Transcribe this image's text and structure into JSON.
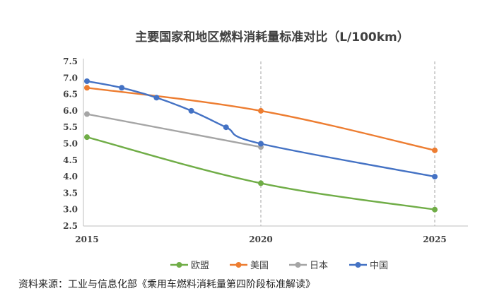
{
  "chart_data": {
    "type": "line",
    "title": "主要国家和地区燃料消耗量标准对比（L/100km）",
    "x_ticks": [
      2015,
      2020,
      2025
    ],
    "y_ticks": [
      "7.5",
      "7.0",
      "6.5",
      "6.0",
      "5.5",
      "5.0",
      "4.5",
      "4.0",
      "3.5",
      "3.0",
      "2.5"
    ],
    "ylim": [
      2.5,
      7.5
    ],
    "xlim": [
      2015,
      2026
    ],
    "grid": "dashed vertical lines at 2020 and 2025",
    "legend_position": "bottom",
    "series": [
      {
        "name": "欧盟",
        "color": "#70ad47",
        "smooth": true,
        "points": [
          [
            2015,
            5.2
          ],
          [
            2020,
            3.8
          ],
          [
            2025,
            3.0
          ]
        ]
      },
      {
        "name": "美国",
        "color": "#ed7d31",
        "smooth": true,
        "points": [
          [
            2015,
            6.7
          ],
          [
            2020,
            6.0
          ],
          [
            2025,
            4.8
          ]
        ]
      },
      {
        "name": "日本",
        "color": "#a5a5a5",
        "smooth": false,
        "points": [
          [
            2015,
            5.9
          ],
          [
            2020,
            4.9
          ]
        ]
      },
      {
        "name": "中国",
        "color": "#4472c4",
        "smooth": true,
        "points": [
          [
            2015,
            6.9
          ],
          [
            2016,
            6.7
          ],
          [
            2017,
            6.4
          ],
          [
            2018,
            6.0
          ],
          [
            2019,
            5.5
          ],
          [
            2020,
            5.0
          ],
          [
            2025,
            4.0
          ]
        ]
      }
    ]
  },
  "source_text": "资料来源：工业与信息化部《乘用车燃料消耗量第四阶段标准解读》"
}
